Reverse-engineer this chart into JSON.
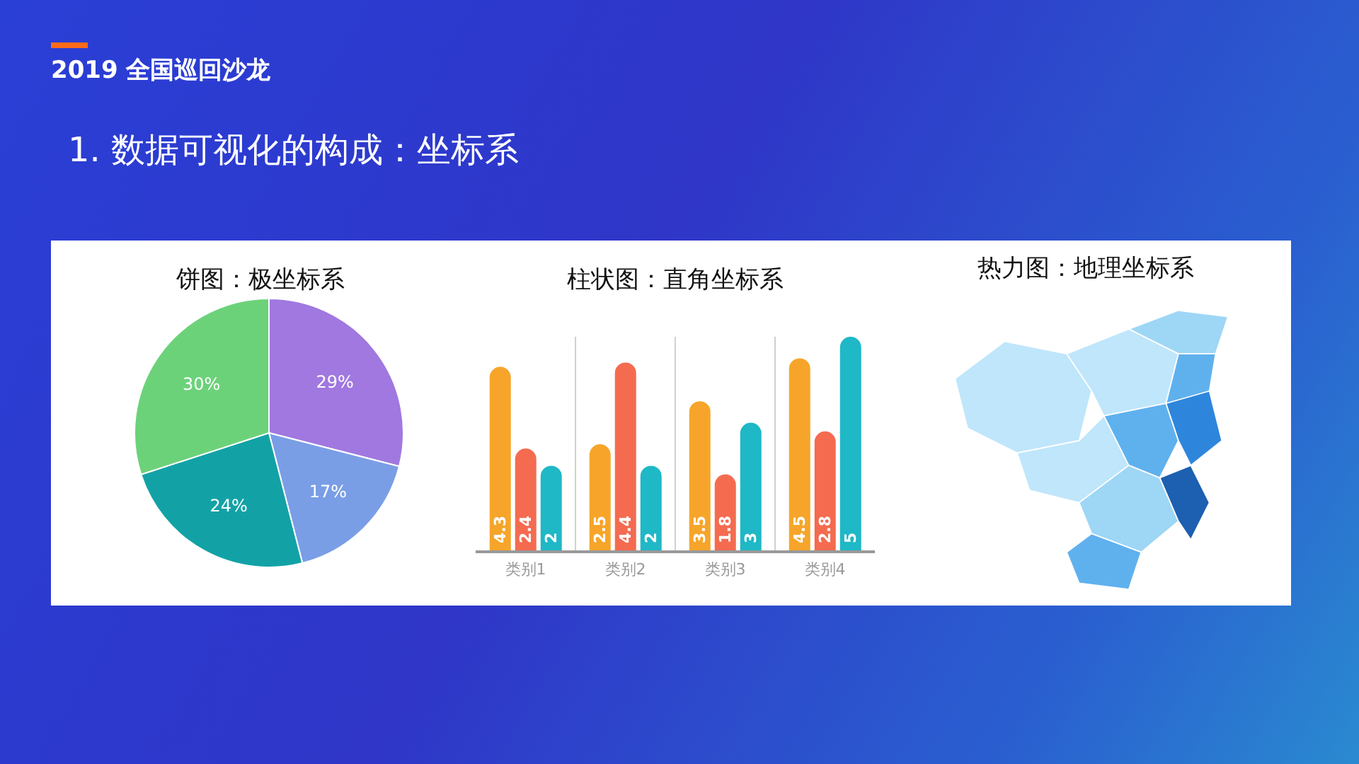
{
  "chart_data": [
    {
      "type": "other",
      "title": "2019 全国巡回沙龙",
      "subtitle": "1. 数据可视化的构成：坐标系"
    },
    {
      "type": "pie",
      "title": "饼图：极坐标系",
      "categories": [
        null,
        null,
        null,
        null
      ],
      "values": [
        29,
        17,
        24,
        30
      ],
      "colors": [
        "#a078e0",
        "#7a9ee6",
        "#12a2a6",
        "#6cd27a"
      ],
      "value_labels": [
        "29%",
        "17%",
        "24%",
        "30%"
      ]
    },
    {
      "type": "bar",
      "title": "柱状图：直角坐标系",
      "categories": [
        "类别1",
        "类别2",
        "类别3",
        "类别4"
      ],
      "grid": "x",
      "data_labels": true,
      "tick_labels": "x",
      "series": [
        {
          "color": "#f6a52a",
          "values": [
            4.3,
            2.5,
            3.5,
            4.5
          ]
        },
        {
          "color": "#f46b50",
          "values": [
            2.4,
            4.4,
            1.8,
            2.8
          ]
        },
        {
          "color": "#1fb8c6",
          "values": [
            2,
            2,
            3,
            5
          ]
        }
      ]
    },
    {
      "type": "other",
      "title": "热力图：地理坐标系"
    }
  ]
}
